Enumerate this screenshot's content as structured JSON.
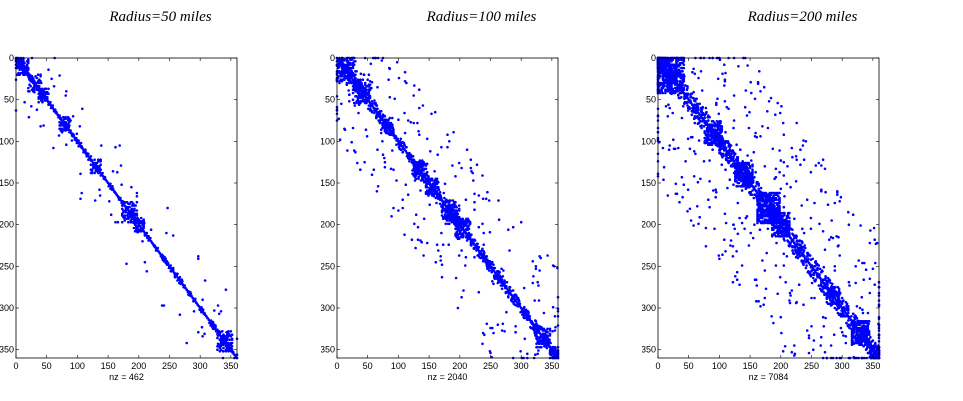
{
  "chart_data": [
    {
      "type": "scatter",
      "title": "Radius=50 miles",
      "xlabel": "nz = 462",
      "xlim": [
        0,
        360
      ],
      "ylim": [
        0,
        360
      ],
      "y_reversed": true,
      "xticks": [
        0,
        50,
        100,
        150,
        200,
        250,
        300,
        350
      ],
      "yticks": [
        0,
        50,
        100,
        150,
        200,
        250,
        300,
        350
      ],
      "nz": 462,
      "marker_color": "#0000ff",
      "blocks": [
        {
          "c": [
            10,
            10
          ],
          "r": 10,
          "d": 0.5
        },
        {
          "c": [
            30,
            30
          ],
          "r": 10,
          "d": 0.45
        },
        {
          "c": [
            45,
            45
          ],
          "r": 8,
          "d": 0.5
        },
        {
          "c": [
            80,
            80
          ],
          "r": 9,
          "d": 0.45
        },
        {
          "c": [
            130,
            130
          ],
          "r": 8,
          "d": 0.4
        },
        {
          "c": [
            185,
            185
          ],
          "r": 12,
          "d": 0.45
        },
        {
          "c": [
            200,
            200
          ],
          "r": 8,
          "d": 0.4
        },
        {
          "c": [
            340,
            340
          ],
          "r": 12,
          "d": 0.4
        }
      ],
      "band": {
        "halfwidth": 4,
        "n": 140
      },
      "offdiag": {
        "n": 45,
        "spread": 70
      }
    },
    {
      "type": "scatter",
      "title": "Radius=100 miles",
      "xlabel": "nz = 2040",
      "xlim": [
        0,
        360
      ],
      "ylim": [
        0,
        360
      ],
      "y_reversed": true,
      "xticks": [
        0,
        50,
        100,
        150,
        200,
        250,
        300,
        350
      ],
      "yticks": [
        0,
        50,
        100,
        150,
        200,
        250,
        300,
        350
      ],
      "nz": 2040,
      "marker_color": "#0000ff",
      "blocks": [
        {
          "c": [
            15,
            15
          ],
          "r": 15,
          "d": 0.45
        },
        {
          "c": [
            40,
            40
          ],
          "r": 14,
          "d": 0.4
        },
        {
          "c": [
            80,
            80
          ],
          "r": 10,
          "d": 0.45
        },
        {
          "c": [
            135,
            135
          ],
          "r": 12,
          "d": 0.4
        },
        {
          "c": [
            155,
            155
          ],
          "r": 10,
          "d": 0.4
        },
        {
          "c": [
            185,
            185
          ],
          "r": 14,
          "d": 0.45
        },
        {
          "c": [
            205,
            205
          ],
          "r": 12,
          "d": 0.4
        },
        {
          "c": [
            335,
            335
          ],
          "r": 12,
          "d": 0.45
        },
        {
          "c": [
            355,
            355
          ],
          "r": 8,
          "d": 0.4
        }
      ],
      "band": {
        "halfwidth": 8,
        "n": 320
      },
      "offdiag": {
        "n": 140,
        "spread": 110
      }
    },
    {
      "type": "scatter",
      "title": "Radius=200 miles",
      "xlabel": "nz = 7084",
      "xlim": [
        0,
        360
      ],
      "ylim": [
        0,
        360
      ],
      "y_reversed": true,
      "xticks": [
        0,
        50,
        100,
        150,
        200,
        250,
        300,
        350
      ],
      "yticks": [
        0,
        50,
        100,
        150,
        200,
        250,
        300,
        350
      ],
      "nz": 7084,
      "marker_color": "#0000ff",
      "blocks": [
        {
          "c": [
            20,
            20
          ],
          "r": 22,
          "d": 0.55
        },
        {
          "c": [
            90,
            90
          ],
          "r": 14,
          "d": 0.5
        },
        {
          "c": [
            140,
            140
          ],
          "r": 14,
          "d": 0.55
        },
        {
          "c": [
            180,
            180
          ],
          "r": 18,
          "d": 0.6
        },
        {
          "c": [
            200,
            200
          ],
          "r": 14,
          "d": 0.55
        },
        {
          "c": [
            285,
            285
          ],
          "r": 10,
          "d": 0.5
        },
        {
          "c": [
            330,
            330
          ],
          "r": 14,
          "d": 0.6
        },
        {
          "c": [
            355,
            355
          ],
          "r": 8,
          "d": 0.5
        }
      ],
      "band": {
        "halfwidth": 14,
        "n": 500
      },
      "offdiag": {
        "n": 260,
        "spread": 150
      }
    }
  ]
}
